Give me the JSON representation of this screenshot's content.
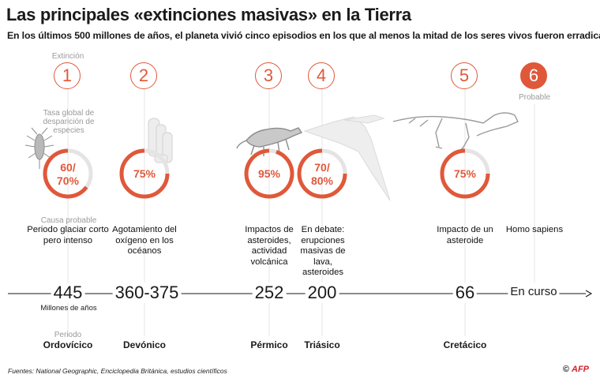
{
  "title": "Las principales «extinciones masivas» en la Tierra",
  "subtitle": "En los últimos 500 millones de años, el planeta vivió cinco episodios en los que al menos la mitad de los seres vivos fueron erradicados",
  "labels": {
    "extinction": "Extinción",
    "rate": "Tasa global de desparición de especies",
    "cause": "Causa probable",
    "millions": "Millones de años",
    "period": "Periodo",
    "probable": "Probable"
  },
  "events": [
    {
      "number": "1",
      "rate": "60/ 70%",
      "rate_pct": 65,
      "cause": "Periodo glaciar corto pero intenso",
      "year": "445",
      "period": "Ordovícico"
    },
    {
      "number": "2",
      "rate": "75%",
      "rate_pct": 75,
      "cause": "Agotamiento del oxígeno en los océanos",
      "year": "360-375",
      "period": "Devónico"
    },
    {
      "number": "3",
      "rate": "95%",
      "rate_pct": 95,
      "cause": "Impactos de asteroides, actividad volcánica",
      "year": "252",
      "period": "Pérmico"
    },
    {
      "number": "4",
      "rate": "70/ 80%",
      "rate_pct": 75,
      "cause": "En debate: erupciones masivas de lava, asteroides",
      "year": "200",
      "period": "Triásico"
    },
    {
      "number": "5",
      "rate": "75%",
      "rate_pct": 75,
      "cause": "Impacto de un asteroide",
      "year": "66",
      "period": "Cretácico"
    },
    {
      "number": "6",
      "cause": "Homo sapiens",
      "year": "En curso"
    }
  ],
  "footer": {
    "sources": "Fuentes: National Geographic, Enciclopedia Británica, estudios científicos",
    "copyright": "©",
    "agency": "AFP"
  },
  "colors": {
    "accent": "#e0583a",
    "grey": "#9a9a9a",
    "faint": "#e4e4e4"
  }
}
